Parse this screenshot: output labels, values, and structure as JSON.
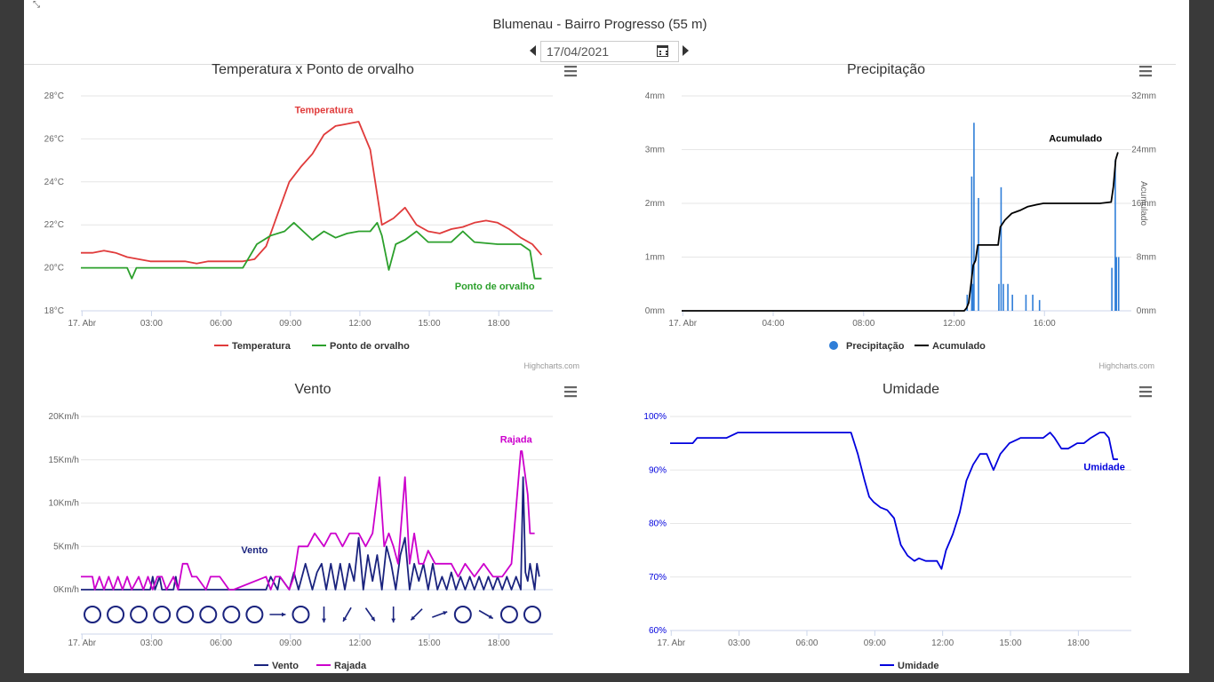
{
  "header": {
    "station_title": "Blumenau - Bairro Progresso (55 m)",
    "date_value": "17/04/2021"
  },
  "icons": [
    "shrink-icon",
    "chevron-left-icon",
    "calendar-icon",
    "chevron-right-icon",
    "hamburger-menu-icon"
  ],
  "colors": {
    "temperature": "#e03b3b",
    "dew_point": "#2ca02c",
    "precipitation": "#2f7ed8",
    "accumulated": "#000000",
    "wind": "#1a237e",
    "gust": "#cc00cc",
    "humidity": "#0000dd"
  },
  "credits": "Highcharts.com",
  "chart_data": [
    {
      "id": "temp",
      "type": "line",
      "title": "Temperatura x Ponto de orvalho",
      "x_ticks": [
        "17. Abr",
        "03:00",
        "06:00",
        "09:00",
        "12:00",
        "15:00",
        "18:00"
      ],
      "y_ticks": [
        "18°C",
        "20°C",
        "22°C",
        "24°C",
        "26°C",
        "28°C"
      ],
      "ylim": [
        18,
        28
      ],
      "xlim": [
        0,
        20
      ],
      "grid": true,
      "legend_position": "bottom",
      "series": [
        {
          "name": "Temperatura",
          "label": "Temperatura",
          "x": [
            0,
            0.5,
            1,
            1.5,
            2,
            2.5,
            3,
            3.5,
            4,
            4.5,
            5,
            5.5,
            6,
            6.5,
            7,
            7.5,
            8,
            8.5,
            9,
            9.5,
            10,
            10.5,
            11,
            11.5,
            12,
            12.5,
            13,
            13.5,
            14,
            14.5,
            15,
            15.5,
            16,
            16.5,
            17,
            17.5,
            18,
            18.5,
            19,
            19.5,
            19.9
          ],
          "y": [
            20.7,
            20.7,
            20.8,
            20.7,
            20.5,
            20.4,
            20.3,
            20.3,
            20.3,
            20.3,
            20.2,
            20.3,
            20.3,
            20.3,
            20.3,
            20.4,
            21,
            22.5,
            24,
            24.7,
            25.3,
            26.2,
            26.6,
            26.7,
            26.8,
            25.5,
            22,
            22.3,
            22.8,
            22,
            21.7,
            21.6,
            21.8,
            21.9,
            22.1,
            22.2,
            22.1,
            21.8,
            21.4,
            21.1,
            20.6
          ]
        },
        {
          "name": "Ponto de orvalho",
          "label": "Ponto de orvalho",
          "x": [
            0,
            1,
            2,
            2.2,
            2.4,
            3,
            4,
            5,
            6,
            7,
            7.6,
            8.2,
            8.8,
            9.2,
            9.6,
            10,
            10.5,
            11,
            11.5,
            12,
            12.5,
            12.8,
            13,
            13.3,
            13.6,
            14,
            14.5,
            15,
            16,
            16.5,
            17,
            18,
            19,
            19.4,
            19.6,
            19.9
          ],
          "y": [
            20,
            20,
            20,
            19.5,
            20,
            20,
            20,
            20,
            20,
            20,
            21.1,
            21.5,
            21.7,
            22.1,
            21.7,
            21.3,
            21.7,
            21.4,
            21.6,
            21.7,
            21.7,
            22.1,
            21.5,
            19.9,
            21.1,
            21.3,
            21.7,
            21.2,
            21.2,
            21.7,
            21.2,
            21.1,
            21.1,
            20.8,
            19.5,
            19.5
          ]
        }
      ]
    },
    {
      "id": "precip",
      "type": "bar",
      "title": "Precipitação",
      "x_ticks": [
        "17. Abr",
        "04:00",
        "08:00",
        "12:00",
        "16:00"
      ],
      "y_ticks": [
        "0mm",
        "1mm",
        "2mm",
        "3mm",
        "4mm"
      ],
      "y2_ticks": [
        "0mm",
        "8mm",
        "16mm",
        "24mm",
        "32mm"
      ],
      "y2_label": "Acumulado",
      "ylim": [
        0,
        4
      ],
      "y2lim": [
        0,
        32
      ],
      "xlim": [
        0,
        19.5
      ],
      "grid": true,
      "legend_position": "bottom",
      "series": [
        {
          "name": "Precipitação",
          "x": [
            12.6,
            12.8,
            12.85,
            12.9,
            13.1,
            14.0,
            14.1,
            14.2,
            14.4,
            14.6,
            15.2,
            15.5,
            15.8,
            19.0,
            19.15,
            19.2,
            19.3
          ],
          "y": [
            0.3,
            2.5,
            0.5,
            3.5,
            2.1,
            0.5,
            2.3,
            0.5,
            0.5,
            0.3,
            0.3,
            0.3,
            0.2,
            0.8,
            2.8,
            1.0,
            1.0
          ]
        },
        {
          "name": "Acumulado",
          "label": "Acumulado",
          "x": [
            0,
            12.5,
            12.6,
            12.7,
            12.8,
            12.9,
            13.0,
            13.1,
            13.5,
            14.0,
            14.1,
            14.3,
            14.6,
            15.0,
            15.3,
            15.7,
            16.0,
            17.5,
            18.5,
            19.0,
            19.1,
            19.2,
            19.3
          ],
          "y": [
            0,
            0,
            0.4,
            1.2,
            4.0,
            6.8,
            7.5,
            9.8,
            9.8,
            9.8,
            12.5,
            13.5,
            14.5,
            15.0,
            15.5,
            15.8,
            16.0,
            16.0,
            16.0,
            16.2,
            18.5,
            22.5,
            23.6
          ]
        }
      ]
    },
    {
      "id": "wind",
      "type": "line",
      "title": "Vento",
      "x_ticks": [
        "17. Abr",
        "03:00",
        "06:00",
        "09:00",
        "12:00",
        "15:00",
        "18:00"
      ],
      "y_ticks": [
        "0Km/h",
        "5Km/h",
        "10Km/h",
        "15Km/h",
        "20Km/h"
      ],
      "ylim": [
        0,
        20
      ],
      "xlim": [
        0,
        20
      ],
      "grid": true,
      "legend_position": "bottom",
      "direction_arrows": [
        {
          "x": 0.5,
          "dir": "calm"
        },
        {
          "x": 1.5,
          "dir": "calm"
        },
        {
          "x": 2.5,
          "dir": "calm"
        },
        {
          "x": 3.5,
          "dir": "calm"
        },
        {
          "x": 4.5,
          "dir": "calm"
        },
        {
          "x": 5.5,
          "dir": "calm"
        },
        {
          "x": 6.5,
          "dir": "calm"
        },
        {
          "x": 7.5,
          "dir": "calm"
        },
        {
          "x": 8.5,
          "dir": 90
        },
        {
          "x": 9.5,
          "dir": "calm"
        },
        {
          "x": 10.5,
          "dir": 180
        },
        {
          "x": 11.5,
          "dir": 210
        },
        {
          "x": 12.5,
          "dir": 145
        },
        {
          "x": 13.5,
          "dir": 180
        },
        {
          "x": 14.5,
          "dir": 225
        },
        {
          "x": 15.5,
          "dir": 70
        },
        {
          "x": 16.5,
          "dir": "calm"
        },
        {
          "x": 17.5,
          "dir": 120
        },
        {
          "x": 18.5,
          "dir": "calm"
        },
        {
          "x": 19.5,
          "dir": "calm"
        }
      ],
      "series": [
        {
          "name": "Vento",
          "label": "Vento",
          "x": [
            0,
            3,
            3.1,
            3.2,
            3.4,
            3.5,
            4,
            4.1,
            4.2,
            8,
            8.2,
            8.5,
            8.6,
            9,
            9.2,
            9.4,
            9.7,
            10,
            10.2,
            10.4,
            10.6,
            10.8,
            11,
            11.2,
            11.4,
            11.6,
            11.8,
            12,
            12.2,
            12.4,
            12.6,
            12.8,
            13,
            13.2,
            13.4,
            13.6,
            13.8,
            14,
            14.2,
            14.4,
            14.6,
            14.8,
            15,
            15.2,
            15.4,
            15.6,
            15.8,
            16,
            16.2,
            16.4,
            16.6,
            16.8,
            17,
            17.2,
            17.4,
            17.6,
            17.8,
            18,
            18.2,
            18.4,
            18.6,
            18.8,
            19,
            19.1,
            19.2,
            19.3,
            19.4,
            19.5,
            19.6,
            19.7,
            19.8
          ],
          "y": [
            0,
            0,
            1.5,
            0,
            1.5,
            0,
            0,
            1.5,
            0,
            0,
            1.5,
            0,
            1.5,
            0,
            2,
            0,
            3,
            0,
            2,
            3,
            0,
            3,
            0,
            3,
            0,
            3,
            1,
            6,
            0,
            4,
            1,
            4,
            0,
            5,
            3,
            0,
            4,
            6,
            0,
            3,
            1,
            3,
            0,
            3,
            0,
            1.5,
            0,
            2,
            0,
            1.5,
            0,
            1.5,
            0,
            1.5,
            0,
            1.5,
            0,
            1.5,
            0,
            1.5,
            0,
            1.5,
            0,
            13,
            2,
            1,
            3,
            1.5,
            0,
            3,
            1.5
          ]
        },
        {
          "name": "Rajada",
          "label": "Rajada",
          "x": [
            0,
            0.5,
            0.6,
            0.8,
            1,
            1.2,
            1.4,
            1.6,
            1.8,
            2,
            2.2,
            2.5,
            2.7,
            2.9,
            3.1,
            3.3,
            3.5,
            3.7,
            4,
            4.2,
            4.4,
            4.6,
            4.8,
            5,
            5.4,
            5.6,
            6,
            6.4,
            6.6,
            8,
            8.2,
            8.4,
            8.6,
            9,
            9.2,
            9.4,
            9.8,
            10.1,
            10.5,
            10.8,
            11,
            11.3,
            11.6,
            12,
            12.3,
            12.6,
            12.9,
            13.1,
            13.3,
            13.5,
            13.7,
            14,
            14.2,
            14.4,
            14.6,
            14.8,
            15,
            15.3,
            15.6,
            16,
            16.3,
            16.6,
            17,
            17.4,
            17.8,
            18.2,
            18.6,
            19,
            19.05,
            19.2,
            19.3,
            19.4,
            19.5,
            19.6
          ],
          "y": [
            1.5,
            1.5,
            0,
            1.5,
            0,
            1.5,
            0,
            1.5,
            0,
            1.5,
            0,
            1.5,
            0,
            1.5,
            0,
            1.5,
            1.5,
            0,
            1.5,
            0,
            3,
            3,
            1.5,
            1.5,
            0,
            1.5,
            1.5,
            0,
            0,
            1.5,
            0,
            1.5,
            1.5,
            0,
            1.5,
            5,
            5,
            6.5,
            5,
            6.5,
            6.5,
            5,
            6.5,
            6.5,
            5,
            6.5,
            13,
            5,
            6.5,
            5,
            3,
            13,
            3,
            6.5,
            3,
            3,
            4.5,
            3,
            3,
            3,
            1.5,
            3,
            1.5,
            3,
            1.5,
            1.5,
            3,
            16,
            16,
            13,
            11,
            6.5,
            6.5,
            6.5
          ]
        }
      ]
    },
    {
      "id": "humid",
      "type": "line",
      "title": "Umidade",
      "x_ticks": [
        "17. Abr",
        "03:00",
        "06:00",
        "09:00",
        "12:00",
        "15:00",
        "18:00"
      ],
      "y_ticks": [
        "60%",
        "70%",
        "80%",
        "90%",
        "100%"
      ],
      "ylim": [
        60,
        100
      ],
      "xlim": [
        0,
        20
      ],
      "grid": true,
      "legend_position": "bottom",
      "series": [
        {
          "name": "Umidade",
          "label": "Umidade",
          "x": [
            0,
            1,
            1.2,
            2,
            2.5,
            3,
            4,
            5,
            6,
            7,
            7.5,
            8,
            8.3,
            8.6,
            8.8,
            9,
            9.3,
            9.6,
            9.9,
            10.2,
            10.5,
            10.8,
            11,
            11.3,
            11.6,
            11.8,
            12,
            12.2,
            12.5,
            12.8,
            13.1,
            13.4,
            13.7,
            14,
            14.3,
            14.6,
            15,
            15.5,
            16,
            16.5,
            16.8,
            17,
            17.3,
            17.6,
            18,
            18.3,
            18.6,
            19,
            19.2,
            19.4,
            19.6,
            19.8
          ],
          "y": [
            95,
            95,
            96,
            96,
            96,
            97,
            97,
            97,
            97,
            97,
            97,
            97,
            93,
            88,
            85,
            84,
            83,
            82.5,
            81,
            76,
            74,
            73,
            73.5,
            73,
            73,
            73,
            71.5,
            75,
            78,
            82,
            88,
            91,
            93,
            93,
            90,
            93,
            95,
            96,
            96,
            96,
            97,
            96,
            94,
            94,
            95,
            95,
            96,
            97,
            97,
            96,
            92,
            92
          ]
        }
      ]
    }
  ]
}
